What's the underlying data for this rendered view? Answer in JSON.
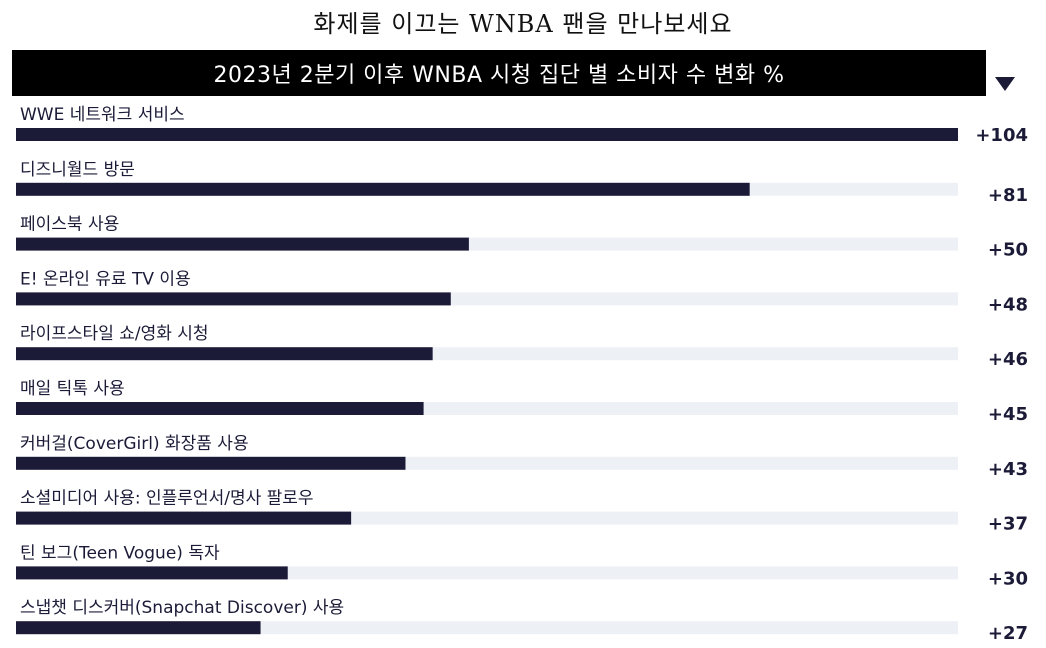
{
  "page": {
    "title": "화제를 이끄는 WNBA 팬을 만나보세요"
  },
  "colors": {
    "bar": "#1b1b38",
    "track": "#edf0f5",
    "header_bg": "#000000",
    "header_text": "#ffffff"
  },
  "chart_data": {
    "type": "bar",
    "orientation": "horizontal",
    "title": "2023년 2분기 이후 WNBA 시청 집단 별 소비자 수 변화 %",
    "categories": [
      "WWE 네트워크 서비스",
      "디즈니월드 방문",
      "페이스북 사용",
      "E! 온라인 유료 TV 이용",
      "라이프스타일 쇼/영화 시청",
      "매일 틱톡 사용",
      "커버걸(CoverGirl) 화장품 사용",
      "소셜미디어 사용: 인플루언서/명사 팔로우",
      "틴 보그(Teen Vogue) 독자",
      "스냅챗 디스커버(Snapchat Discover) 사용"
    ],
    "values": [
      104,
      81,
      50,
      48,
      46,
      45,
      43,
      37,
      30,
      27
    ],
    "value_labels": [
      "+104",
      "+81",
      "+50",
      "+48",
      "+46",
      "+45",
      "+43",
      "+37",
      "+30",
      "+27"
    ],
    "xlim": [
      0,
      104
    ],
    "grid": false,
    "sort_indicator": "descending"
  }
}
